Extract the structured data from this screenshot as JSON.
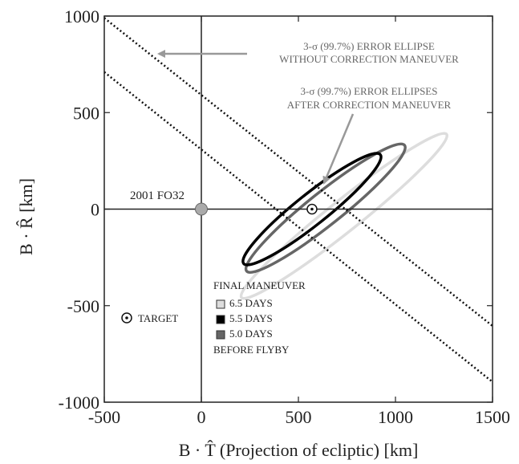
{
  "chart_data": {
    "type": "scatter",
    "xlabel": "B · T̂ (Projection of ecliptic) [km]",
    "ylabel": "B · R̂ [km]",
    "xlim": [
      -500,
      1500
    ],
    "ylim": [
      -1000,
      1000
    ],
    "xticks": [
      "-500",
      "0",
      "500",
      "1000",
      "1500"
    ],
    "yticks": [
      "1000",
      "500",
      "0",
      "-500",
      "-1000"
    ],
    "xtick_values": [
      -500,
      0,
      500,
      1000,
      1500
    ],
    "ytick_values": [
      1000,
      500,
      0,
      -500,
      -1000
    ],
    "grid": false,
    "asteroid": {
      "label": "2001 FO32",
      "x": 0,
      "y": 0,
      "color": "#aaaaaa"
    },
    "target": {
      "x": 570,
      "y": 0,
      "legend_label": "TARGET"
    },
    "uncorrected_bounds": {
      "lines": [
        {
          "points": [
            [
              -500,
              990
            ],
            [
              1500,
              -605
            ]
          ]
        },
        {
          "points": [
            [
              -500,
              710
            ],
            [
              1500,
              -895
            ]
          ]
        }
      ],
      "annotation": [
        "3-σ (99.7%) ERROR ELLIPSE",
        "WITHOUT CORRECTION MANEUVER"
      ]
    },
    "corrected_annotation": [
      "3-σ (99.7%) ERROR ELLIPSES",
      "AFTER CORRECTION MANEUVER"
    ],
    "ellipses": [
      {
        "name": "6.5 DAYS",
        "color": "#dddddd",
        "cx": 735,
        "cy": -35,
        "a": 675,
        "b": 80,
        "angle_deg": -38.5
      },
      {
        "name": "5.0 DAYS",
        "color": "#666666",
        "cx": 640,
        "cy": 5,
        "a": 520,
        "b": 85,
        "angle_deg": -38.5
      },
      {
        "name": "5.5 DAYS",
        "color": "#000000",
        "cx": 570,
        "cy": 0,
        "a": 450,
        "b": 80,
        "angle_deg": -38.5
      }
    ],
    "legend": {
      "title": "FINAL MANEUVER",
      "items": [
        {
          "label": "6.5 DAYS",
          "color": "#dddddd"
        },
        {
          "label": "5.5 DAYS",
          "color": "#000000"
        },
        {
          "label": "5.0 DAYS",
          "color": "#666666"
        }
      ],
      "footer": "BEFORE FLYBY",
      "placement": "bottom-center"
    }
  }
}
